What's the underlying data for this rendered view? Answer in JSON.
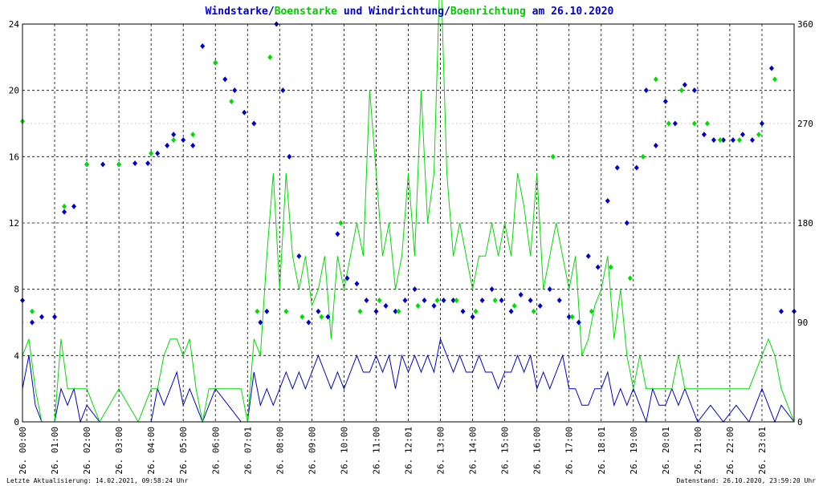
{
  "chart_data": {
    "type": "line",
    "title_parts": [
      {
        "text": "Windstarke",
        "color": "#0000cc"
      },
      {
        "text": "/",
        "color": "#0000cc"
      },
      {
        "text": "Boenstarke",
        "color": "#00cc00"
      },
      {
        "text": " und ",
        "color": "#0000cc"
      },
      {
        "text": "Windrichtung",
        "color": "#0000cc"
      },
      {
        "text": "/",
        "color": "#0000cc"
      },
      {
        "text": "Boenrichtung",
        "color": "#00cc00"
      },
      {
        "text": " am 26.10.2020",
        "color": "#0000cc"
      }
    ],
    "footer_left": "Letzte Aktualisierung: 14.02.2021, 09:58:24 Uhr",
    "footer_right": "Datenstand: 26.10.2020, 23:59:20 Uhr",
    "x_range_hours": [
      0,
      24
    ],
    "ylim_left": [
      0,
      24
    ],
    "ylim_right": [
      0,
      360
    ],
    "yticks_left": [
      "0",
      "4",
      "8",
      "12",
      "16",
      "20",
      "24"
    ],
    "yticks_right": [
      "0",
      "90",
      "180",
      "270",
      "360"
    ],
    "xticks": [
      "26. 00:00",
      "26. 01:00",
      "26. 02:00",
      "26. 03:00",
      "26. 04:00",
      "26. 05:00",
      "26. 06:00",
      "26. 07:01",
      "26. 08:00",
      "26. 09:00",
      "26. 10:00",
      "26. 11:00",
      "26. 12:01",
      "26. 13:00",
      "26. 14:00",
      "26. 15:00",
      "26. 16:00",
      "26. 17:00",
      "26. 18:01",
      "26. 19:00",
      "26. 20:01",
      "26. 21:00",
      "26. 22:00",
      "26. 23:01"
    ],
    "grid": true,
    "colors": {
      "wind": "#0000cc",
      "gust": "#00dd00",
      "grid": "#000000",
      "background": "#ffffff"
    },
    "series": [
      {
        "name": "Windstarke",
        "kind": "line",
        "axis": "left",
        "color": "#0000cc",
        "x": [
          0.0,
          0.2,
          0.4,
          0.6,
          1.0,
          1.2,
          1.4,
          1.6,
          1.8,
          2.0,
          2.4,
          3.0,
          3.6,
          4.0,
          4.2,
          4.4,
          4.6,
          4.8,
          5.0,
          5.2,
          5.4,
          5.6,
          5.8,
          6.0,
          6.4,
          6.8,
          7.0,
          7.2,
          7.4,
          7.6,
          7.8,
          8.0,
          8.2,
          8.4,
          8.6,
          8.8,
          9.0,
          9.2,
          9.4,
          9.6,
          9.8,
          10.0,
          10.2,
          10.4,
          10.6,
          10.8,
          11.0,
          11.2,
          11.4,
          11.6,
          11.8,
          12.0,
          12.2,
          12.4,
          12.6,
          12.8,
          13.0,
          13.2,
          13.4,
          13.6,
          13.8,
          14.0,
          14.2,
          14.4,
          14.6,
          14.8,
          15.0,
          15.2,
          15.4,
          15.6,
          15.8,
          16.0,
          16.2,
          16.4,
          16.6,
          16.8,
          17.0,
          17.2,
          17.4,
          17.6,
          17.8,
          18.0,
          18.2,
          18.4,
          18.6,
          18.8,
          19.0,
          19.2,
          19.4,
          19.6,
          19.8,
          20.0,
          20.2,
          20.4,
          20.6,
          20.8,
          21.0,
          21.4,
          21.8,
          22.2,
          22.6,
          23.0,
          23.2,
          23.4,
          23.6,
          24.0
        ],
        "values": [
          2,
          4,
          1,
          0,
          0,
          2,
          1,
          2,
          0,
          1,
          0,
          0,
          0,
          0,
          2,
          1,
          2,
          3,
          1,
          2,
          1,
          0,
          1,
          2,
          1,
          0,
          0,
          3,
          1,
          2,
          1,
          2,
          3,
          2,
          3,
          2,
          3,
          4,
          3,
          2,
          3,
          2,
          3,
          4,
          3,
          3,
          4,
          3,
          4,
          2,
          4,
          3,
          4,
          3,
          4,
          3,
          5,
          4,
          3,
          4,
          3,
          3,
          4,
          3,
          3,
          2,
          3,
          3,
          4,
          3,
          4,
          2,
          3,
          2,
          3,
          4,
          2,
          2,
          1,
          1,
          2,
          2,
          3,
          1,
          2,
          1,
          2,
          1,
          0,
          2,
          1,
          1,
          2,
          1,
          2,
          1,
          0,
          1,
          0,
          1,
          0,
          2,
          1,
          0,
          1,
          0
        ]
      },
      {
        "name": "Boenstarke",
        "kind": "line",
        "axis": "left",
        "color": "#00dd00",
        "x": [
          0.0,
          0.2,
          0.4,
          0.6,
          1.0,
          1.2,
          1.4,
          1.6,
          1.8,
          2.0,
          2.4,
          3.0,
          3.6,
          4.0,
          4.2,
          4.4,
          4.6,
          4.8,
          5.0,
          5.2,
          5.4,
          5.6,
          5.8,
          6.0,
          6.4,
          6.8,
          7.0,
          7.2,
          7.4,
          7.6,
          7.8,
          8.0,
          8.2,
          8.4,
          8.6,
          8.8,
          9.0,
          9.2,
          9.4,
          9.6,
          9.8,
          10.0,
          10.2,
          10.4,
          10.6,
          10.8,
          11.0,
          11.2,
          11.4,
          11.6,
          11.8,
          12.0,
          12.2,
          12.4,
          12.6,
          12.8,
          13.0,
          13.2,
          13.4,
          13.6,
          13.8,
          14.0,
          14.2,
          14.4,
          14.6,
          14.8,
          15.0,
          15.2,
          15.4,
          15.6,
          15.8,
          16.0,
          16.2,
          16.4,
          16.6,
          16.8,
          17.0,
          17.2,
          17.4,
          17.6,
          17.8,
          18.0,
          18.2,
          18.4,
          18.6,
          18.8,
          19.0,
          19.2,
          19.4,
          19.6,
          19.8,
          20.0,
          20.2,
          20.4,
          20.6,
          20.8,
          21.0,
          21.4,
          21.8,
          22.2,
          22.6,
          23.0,
          23.2,
          23.4,
          23.6,
          24.0
        ],
        "values": [
          4,
          5,
          2,
          0,
          0,
          5,
          2,
          2,
          2,
          2,
          0,
          2,
          0,
          2,
          2,
          4,
          5,
          5,
          4,
          5,
          2,
          0,
          2,
          2,
          2,
          2,
          0,
          5,
          4,
          10,
          15,
          8,
          15,
          10,
          8,
          10,
          7,
          8,
          10,
          5,
          10,
          8,
          10,
          12,
          10,
          20,
          15,
          10,
          12,
          8,
          10,
          15,
          10,
          20,
          12,
          15,
          28,
          15,
          10,
          12,
          10,
          8,
          10,
          10,
          12,
          10,
          12,
          10,
          15,
          13,
          10,
          15,
          8,
          10,
          12,
          10,
          8,
          10,
          4,
          5,
          7,
          8,
          10,
          5,
          8,
          4,
          2,
          4,
          2,
          2,
          2,
          2,
          2,
          4,
          2,
          2,
          2,
          2,
          2,
          2,
          2,
          4,
          5,
          4,
          2,
          0
        ]
      },
      {
        "name": "Windrichtung",
        "kind": "scatter",
        "axis": "right",
        "color": "#0000cc",
        "x": [
          0.0,
          0.3,
          0.6,
          1.0,
          1.3,
          1.6,
          2.0,
          2.5,
          3.0,
          3.5,
          3.9,
          4.2,
          4.5,
          4.7,
          5.0,
          5.3,
          5.6,
          6.0,
          6.3,
          6.6,
          6.9,
          7.2,
          7.4,
          7.6,
          7.9,
          8.1,
          8.3,
          8.6,
          8.9,
          9.2,
          9.5,
          9.8,
          10.1,
          10.4,
          10.7,
          11.0,
          11.3,
          11.6,
          11.9,
          12.2,
          12.5,
          12.8,
          13.1,
          13.4,
          13.7,
          14.0,
          14.3,
          14.6,
          14.9,
          15.2,
          15.5,
          15.8,
          16.1,
          16.4,
          16.7,
          17.0,
          17.3,
          17.6,
          17.9,
          18.2,
          18.5,
          18.8,
          19.1,
          19.4,
          19.7,
          20.0,
          20.3,
          20.6,
          20.9,
          21.2,
          21.5,
          21.8,
          22.1,
          22.4,
          22.7,
          23.0,
          23.3,
          23.6,
          24.0
        ],
        "values": [
          110,
          90,
          95,
          95,
          190,
          195,
          233,
          233,
          233,
          234,
          234,
          243,
          250,
          260,
          255,
          250,
          340,
          325,
          310,
          300,
          280,
          270,
          90,
          100,
          360,
          300,
          240,
          150,
          90,
          100,
          95,
          170,
          130,
          125,
          110,
          100,
          105,
          100,
          110,
          120,
          110,
          105,
          110,
          110,
          100,
          95,
          110,
          120,
          110,
          100,
          115,
          110,
          105,
          120,
          110,
          95,
          90,
          150,
          140,
          200,
          230,
          180,
          230,
          300,
          250,
          290,
          270,
          305,
          300,
          260,
          255,
          255,
          255,
          260,
          255,
          270,
          320,
          100,
          100
        ]
      },
      {
        "name": "Boenrichtung",
        "kind": "scatter",
        "axis": "right",
        "color": "#00dd00",
        "x": [
          0.0,
          0.3,
          1.3,
          2.0,
          3.0,
          4.0,
          4.7,
          5.3,
          6.0,
          6.5,
          7.3,
          7.7,
          8.2,
          8.7,
          9.3,
          9.9,
          10.5,
          11.1,
          11.7,
          12.3,
          12.9,
          13.5,
          14.1,
          14.7,
          15.3,
          15.9,
          16.5,
          17.1,
          17.7,
          18.3,
          18.9,
          19.3,
          19.7,
          20.1,
          20.5,
          20.9,
          21.3,
          21.7,
          22.3,
          22.9,
          23.4
        ],
        "values": [
          272,
          100,
          195,
          233,
          233,
          243,
          255,
          260,
          325,
          290,
          100,
          330,
          100,
          95,
          95,
          180,
          100,
          110,
          100,
          105,
          110,
          110,
          100,
          110,
          105,
          100,
          240,
          95,
          100,
          140,
          130,
          240,
          310,
          270,
          300,
          270,
          270,
          255,
          255,
          260,
          310
        ]
      }
    ]
  }
}
